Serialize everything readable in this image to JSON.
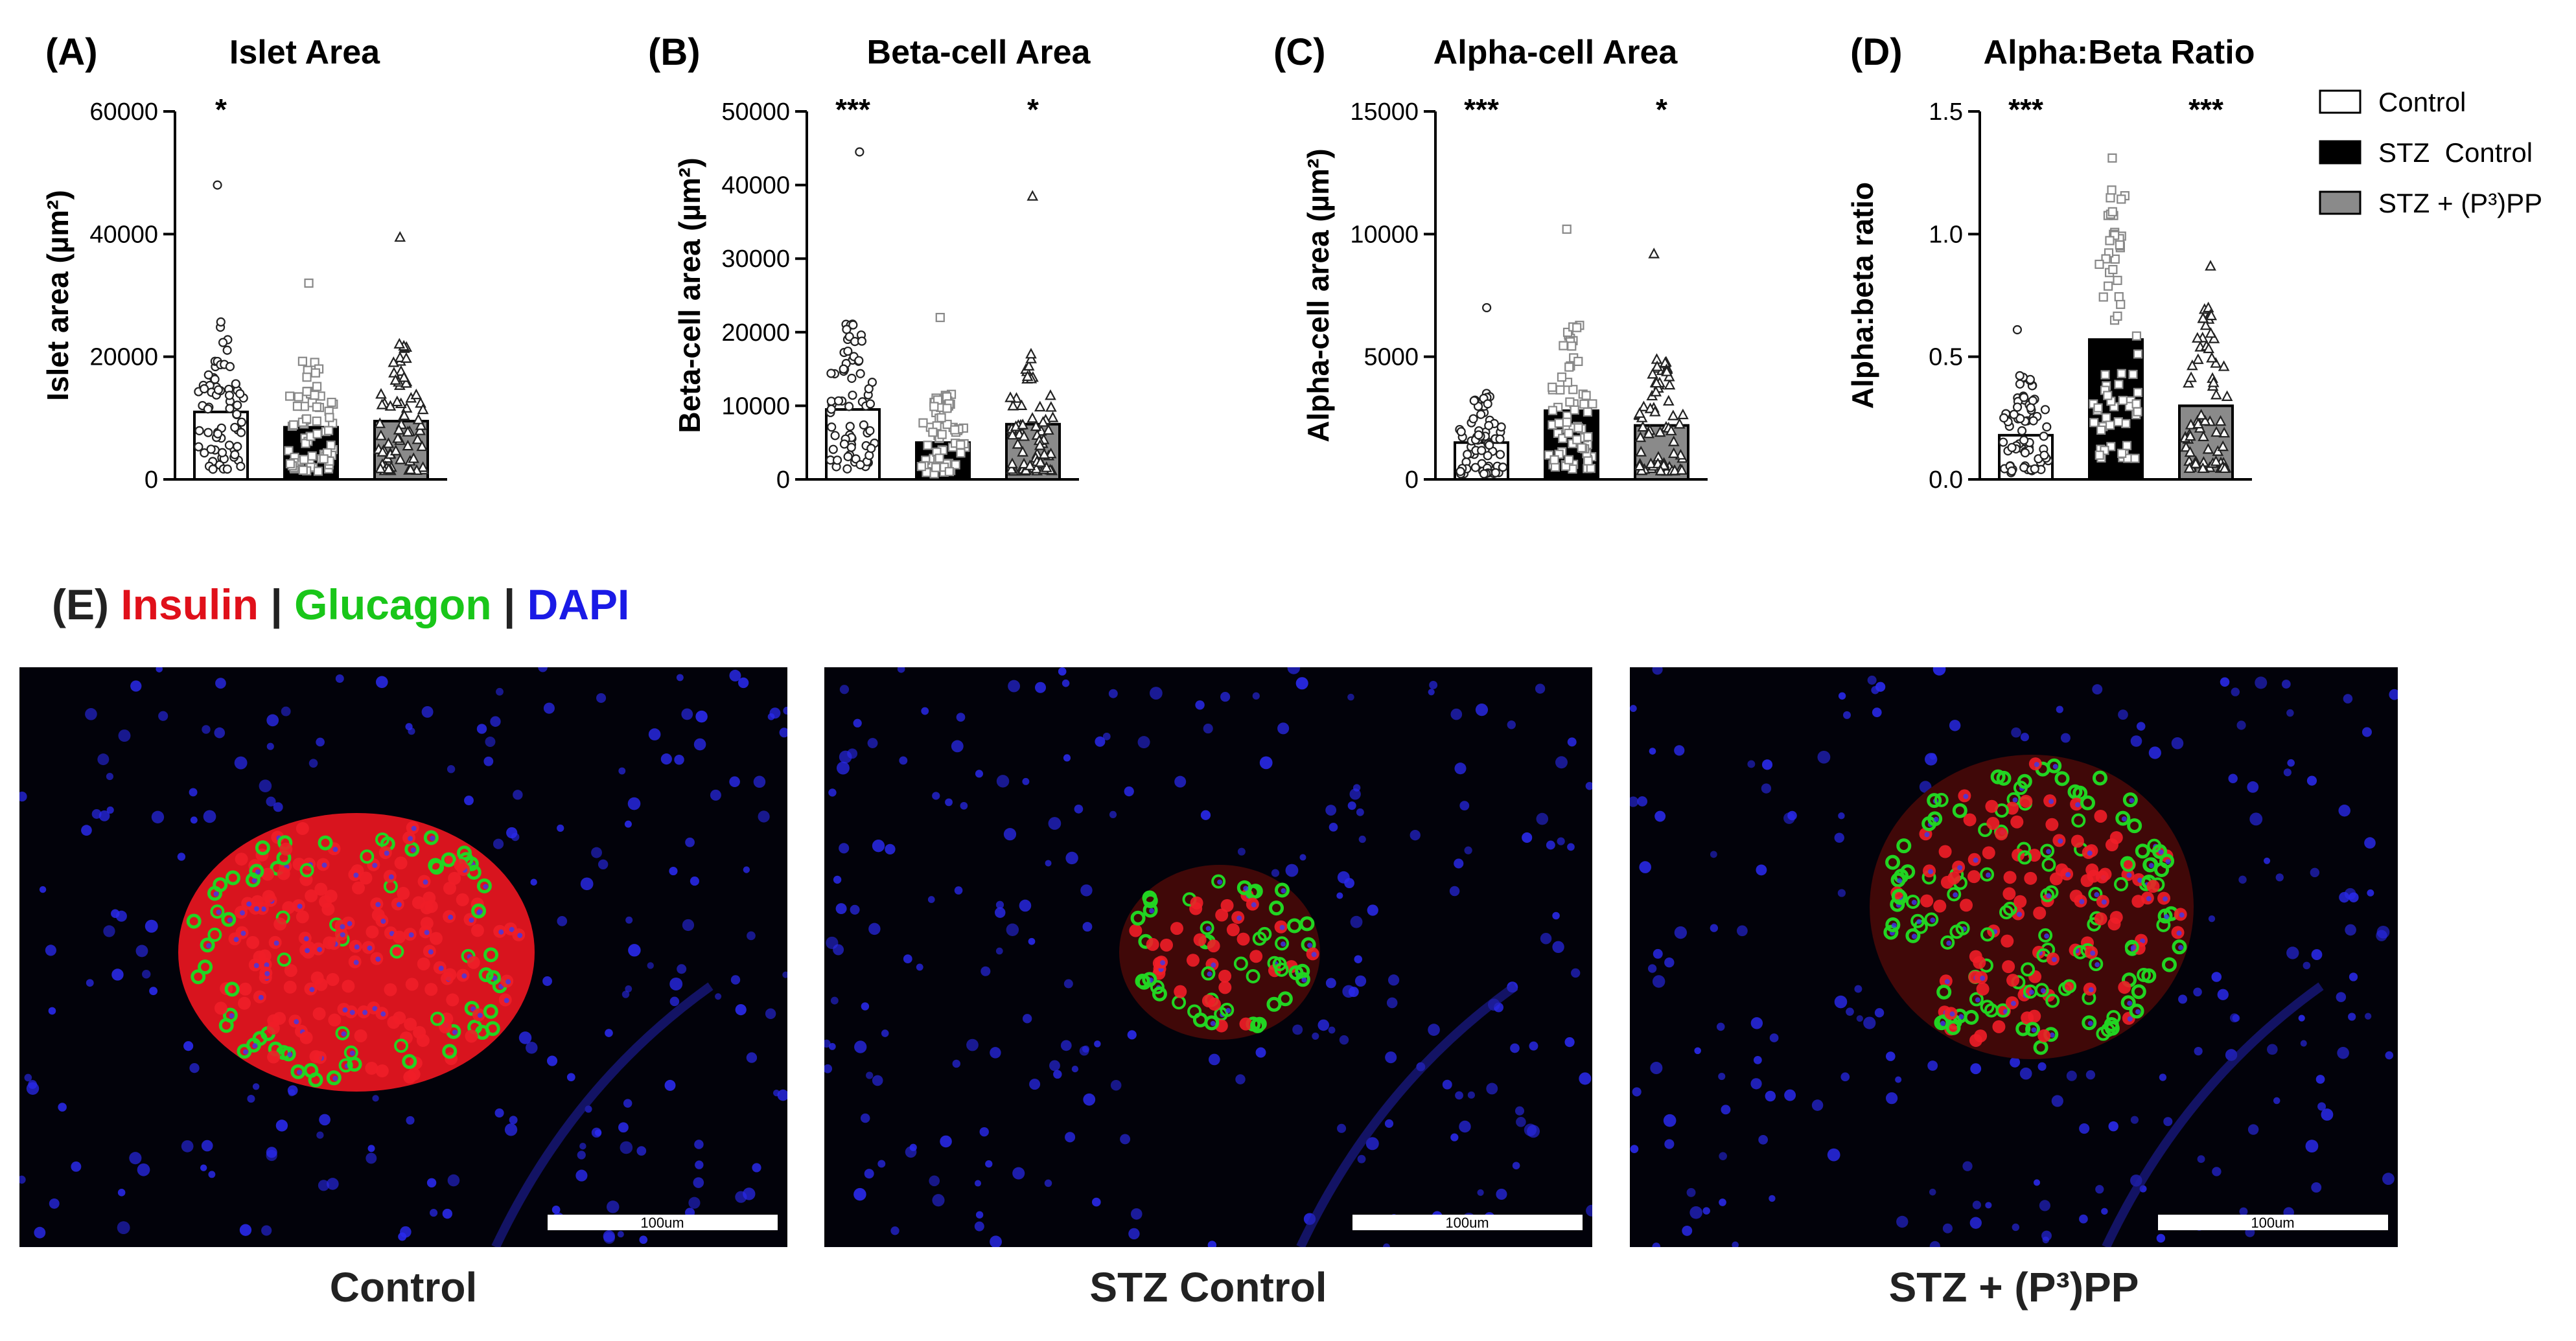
{
  "colors": {
    "control": "#ffffff",
    "stz_control": "#000000",
    "stz_pp": "#8a8a8a",
    "insulin": "#e0101a",
    "glucagon": "#19c619",
    "dapi": "#1a1ae6"
  },
  "legend": [
    {
      "label": "Control",
      "fill": "#ffffff"
    },
    {
      "label": "STZ  Control",
      "fill": "#000000"
    },
    {
      "label": "STZ + (P³)PP",
      "fill": "#8a8a8a"
    }
  ],
  "chart_data": [
    {
      "type": "bar",
      "panel": "(A)",
      "title": "Islet Area",
      "ylabel": "Islet area (µm²)",
      "ylim": [
        0,
        60000
      ],
      "yticks": [
        0,
        20000,
        40000,
        60000
      ],
      "categories": [
        "Control",
        "STZ  Control",
        "STZ + (P³)PP"
      ],
      "values": [
        11000,
        8500,
        9500
      ],
      "significance": [
        "*",
        "",
        ""
      ],
      "point_max": [
        48000,
        32000,
        39500
      ],
      "markers": [
        "circle",
        "square",
        "triangle"
      ]
    },
    {
      "type": "bar",
      "panel": "(B)",
      "title": "Beta-cell Area",
      "ylabel": "Beta-cell area (µm²)",
      "ylim": [
        0,
        50000
      ],
      "yticks": [
        0,
        10000,
        20000,
        30000,
        40000,
        50000
      ],
      "categories": [
        "Control",
        "STZ  Control",
        "STZ + (P³)PP"
      ],
      "values": [
        9500,
        5000,
        7500
      ],
      "significance": [
        "***",
        "",
        "*"
      ],
      "point_max": [
        44500,
        22000,
        38500
      ],
      "markers": [
        "circle",
        "square",
        "triangle"
      ]
    },
    {
      "type": "bar",
      "panel": "(C)",
      "title": "Alpha-cell Area",
      "ylabel": "Alpha-cell area (µm²)",
      "ylim": [
        0,
        15000
      ],
      "yticks": [
        0,
        5000,
        10000,
        15000
      ],
      "categories": [
        "Control",
        "STZ  Control",
        "STZ + (P³)PP"
      ],
      "values": [
        1500,
        2800,
        2200
      ],
      "significance": [
        "***",
        "",
        "*"
      ],
      "point_max": [
        7000,
        10200,
        9200
      ],
      "markers": [
        "circle",
        "square",
        "triangle"
      ]
    },
    {
      "type": "bar",
      "panel": "(D)",
      "title": "Alpha:Beta Ratio",
      "ylabel": "Alpha:beta ratio",
      "ylim": [
        0,
        1.5
      ],
      "yticks": [
        0.0,
        0.5,
        1.0,
        1.5
      ],
      "tick_decimals": 1,
      "categories": [
        "Control",
        "STZ  Control",
        "STZ + (P³)PP"
      ],
      "values": [
        0.18,
        0.57,
        0.3
      ],
      "significance": [
        "***",
        "",
        "***"
      ],
      "point_max": [
        0.61,
        1.31,
        0.87
      ],
      "markers": [
        "circle",
        "square",
        "triangle"
      ]
    }
  ],
  "stain_heading": {
    "prefix": "(E)",
    "insulin": "Insulin",
    "sep": "|",
    "glucagon": "Glucagon",
    "dapi": "DAPI"
  },
  "micrographs": [
    {
      "caption": "Control",
      "scale_label": "100um"
    },
    {
      "caption": "STZ Control",
      "scale_label": "100um"
    },
    {
      "caption": "STZ + (P³)PP",
      "scale_label": "100um"
    }
  ]
}
